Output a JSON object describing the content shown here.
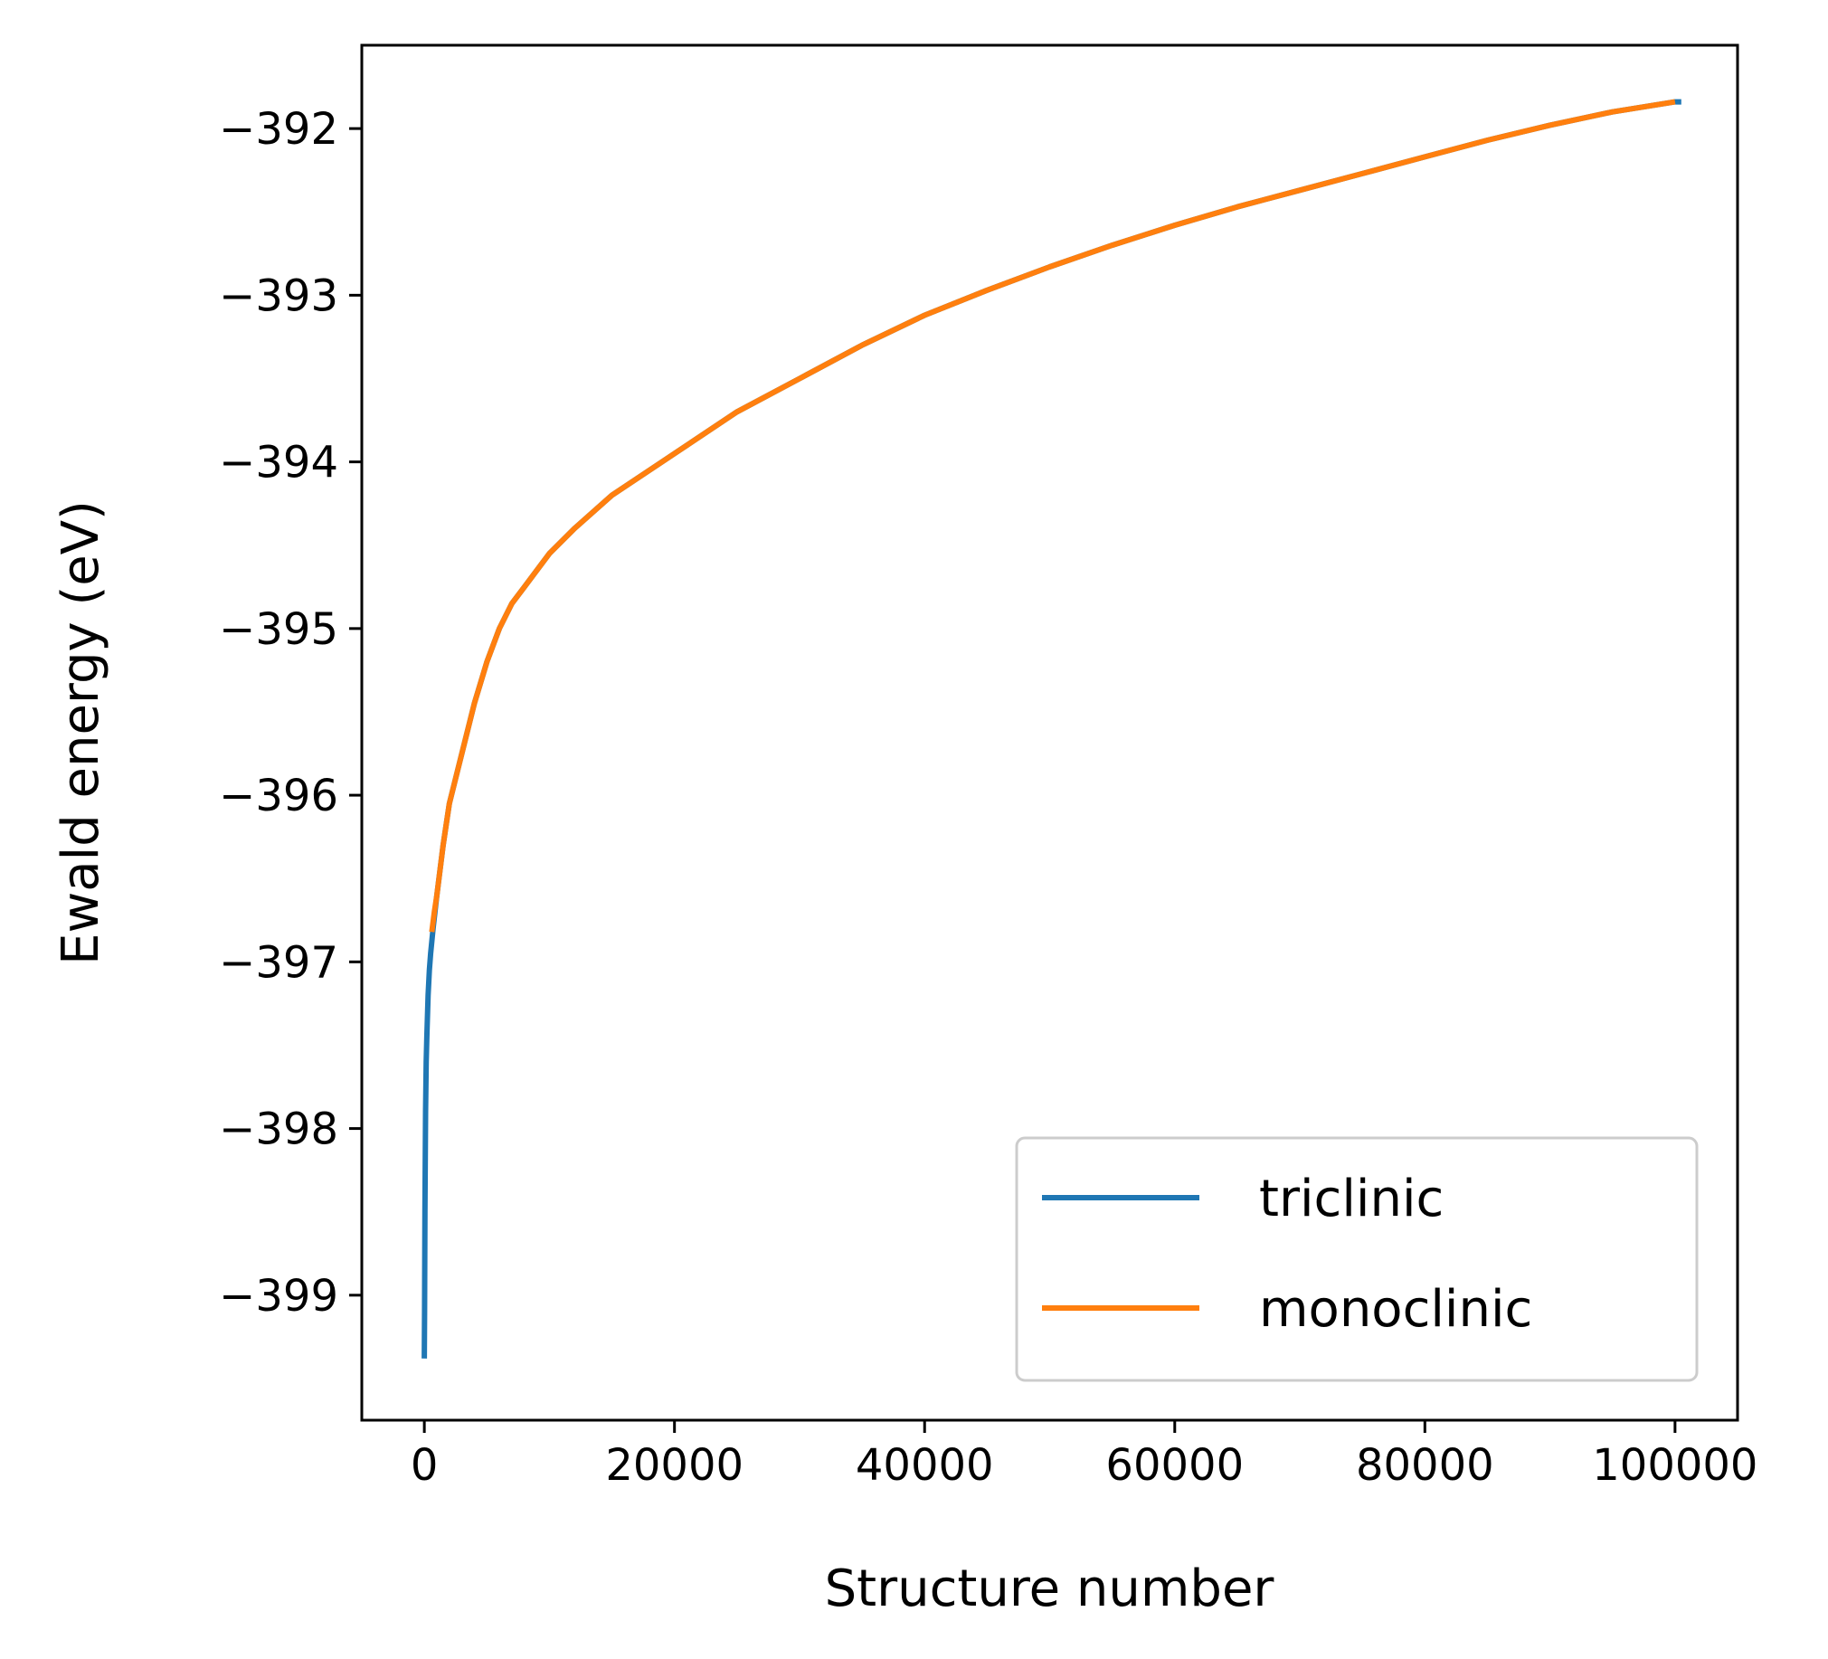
{
  "chart_data": {
    "type": "line",
    "title": "",
    "xlabel": "Structure number",
    "ylabel": "Ewald energy (eV)",
    "xlim": [
      -5000,
      105000
    ],
    "ylim": [
      -399.75,
      -391.5
    ],
    "grid": false,
    "legend": "lower-right",
    "xticks": [
      0,
      20000,
      40000,
      60000,
      80000,
      100000
    ],
    "xtick_labels": [
      "0",
      "20000",
      "40000",
      "60000",
      "80000",
      "100000"
    ],
    "yticks": [
      -392,
      -393,
      -394,
      -395,
      -396,
      -397,
      -398,
      -399
    ],
    "ytick_labels": [
      "−392",
      "−393",
      "−394",
      "−395",
      "−396",
      "−397",
      "−398",
      "−399"
    ],
    "series": [
      {
        "name": "triclinic",
        "color": "#1f77b4",
        "x": [
          0,
          20,
          50,
          100,
          150,
          200,
          300,
          400,
          500,
          700,
          1000,
          1500,
          2000,
          3000,
          4000,
          5000,
          6000,
          7000,
          8000,
          10000,
          12000,
          15000,
          20000,
          25000,
          30000,
          35000,
          40000,
          45000,
          50000,
          55000,
          60000,
          65000,
          70000,
          75000,
          80000,
          85000,
          90000,
          95000,
          100000,
          100500
        ],
        "y": [
          -399.38,
          -399.1,
          -398.5,
          -397.9,
          -397.6,
          -397.45,
          -397.2,
          -397.05,
          -396.95,
          -396.8,
          -396.6,
          -396.3,
          -396.05,
          -395.75,
          -395.45,
          -395.2,
          -395.0,
          -394.85,
          -394.75,
          -394.55,
          -394.4,
          -394.2,
          -393.95,
          -393.7,
          -393.5,
          -393.3,
          -393.12,
          -392.97,
          -392.83,
          -392.7,
          -392.58,
          -392.47,
          -392.37,
          -392.27,
          -392.17,
          -392.07,
          -391.98,
          -391.9,
          -391.84,
          -391.84
        ]
      },
      {
        "name": "monoclinic",
        "color": "#ff7f0e",
        "x": [
          600,
          800,
          1000,
          1500,
          2000,
          3000,
          4000,
          5000,
          6000,
          7000,
          8000,
          10000,
          12000,
          15000,
          20000,
          25000,
          30000,
          35000,
          40000,
          45000,
          50000,
          55000,
          60000,
          65000,
          70000,
          75000,
          80000,
          85000,
          90000,
          95000,
          100000
        ],
        "y": [
          -396.82,
          -396.7,
          -396.6,
          -396.3,
          -396.05,
          -395.75,
          -395.45,
          -395.2,
          -395.0,
          -394.85,
          -394.75,
          -394.55,
          -394.4,
          -394.2,
          -393.95,
          -393.7,
          -393.5,
          -393.3,
          -393.12,
          -392.97,
          -392.83,
          -392.7,
          -392.58,
          -392.47,
          -392.37,
          -392.27,
          -392.17,
          -392.07,
          -391.98,
          -391.9,
          -391.84
        ]
      }
    ]
  }
}
